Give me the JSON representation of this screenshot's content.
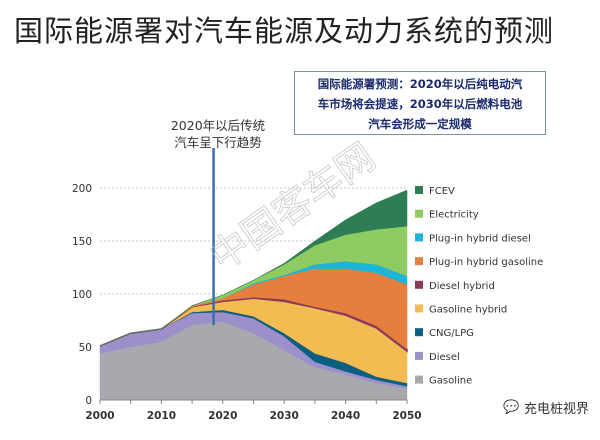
{
  "title": "国际能源署对汽车能源及动力系统的预测",
  "callout": {
    "lines": [
      "国际能源署预测：2020年以后纯电动汽",
      "车市场将会提速，2030年以后燃料电池",
      "汽车会形成一定规模"
    ]
  },
  "annotation": {
    "lines": [
      "2020年以后传统",
      "汽车呈下行趋势"
    ],
    "marker_year": 2018.5
  },
  "watermark": "中国客车网",
  "source_badge": {
    "icon": "wechat-icon",
    "label": "充电桩视界"
  },
  "chart_data": {
    "type": "area",
    "stacked": true,
    "x": [
      2000,
      2005,
      2010,
      2015,
      2020,
      2025,
      2030,
      2035,
      2040,
      2045,
      2050
    ],
    "xticks": [
      2000,
      2010,
      2020,
      2030,
      2040,
      2050
    ],
    "yticks": [
      0,
      50,
      100,
      150,
      200
    ],
    "xlim": [
      2000,
      2050
    ],
    "ylim": [
      0,
      200
    ],
    "grid": true,
    "legend_placement": "right",
    "series": [
      {
        "name": "Gasoline",
        "color": "#a9a8ae",
        "values": [
          44,
          50,
          55,
          71,
          74,
          63,
          47,
          31,
          24,
          16,
          11
        ]
      },
      {
        "name": "Diesel",
        "color": "#9d8fc9",
        "values": [
          7,
          13,
          12,
          11,
          9,
          14,
          13,
          5,
          3,
          3,
          2
        ]
      },
      {
        "name": "CNG/LPG",
        "color": "#0b5f80",
        "values": [
          0,
          0,
          0,
          1,
          2,
          2,
          3,
          8,
          8,
          3,
          3
        ]
      },
      {
        "name": "Gasoline hybrid",
        "color": "#f2bc52",
        "values": [
          0,
          0,
          0,
          5,
          8,
          17,
          30,
          43,
          45,
          46,
          30
        ]
      },
      {
        "name": "Diesel hybrid",
        "color": "#8a3b5c",
        "values": [
          0,
          0,
          0,
          0,
          1,
          1,
          2,
          1,
          2,
          2,
          2
        ]
      },
      {
        "name": "Plug-in hybrid gasoline",
        "color": "#e67f3d",
        "values": [
          0,
          0,
          0,
          1,
          2,
          12,
          22,
          36,
          42,
          50,
          61
        ]
      },
      {
        "name": "Plug-in hybrid diesel",
        "color": "#1cb5d8",
        "values": [
          0,
          0,
          0,
          0,
          0,
          1,
          1,
          4,
          7,
          8,
          8
        ]
      },
      {
        "name": "Electricity",
        "color": "#8ecb60",
        "values": [
          0,
          0,
          0,
          0,
          3,
          3,
          10,
          18,
          25,
          33,
          47
        ]
      },
      {
        "name": "FCEV",
        "color": "#2e7d55",
        "values": [
          0,
          0,
          0,
          0,
          0,
          0,
          1,
          4,
          14,
          25,
          34
        ]
      }
    ]
  }
}
